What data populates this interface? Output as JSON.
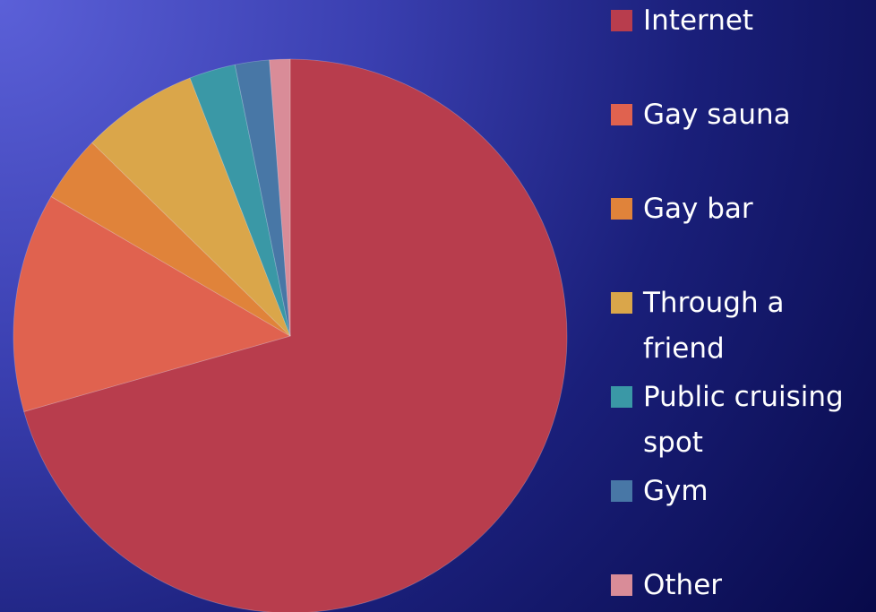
{
  "chart_data": {
    "type": "pie",
    "categories": [
      "Internet",
      "Gay sauna",
      "Gay bar",
      "Through a friend",
      "Public cruising spot",
      "Gym",
      "Other"
    ],
    "values": [
      70.6,
      12.8,
      3.9,
      6.8,
      2.7,
      2.0,
      1.2
    ],
    "colors": [
      "#b83d4d",
      "#e0624f",
      "#e0833a",
      "#daa64a",
      "#3a98a6",
      "#4877a6",
      "#d98c98"
    ],
    "legend": "right"
  }
}
